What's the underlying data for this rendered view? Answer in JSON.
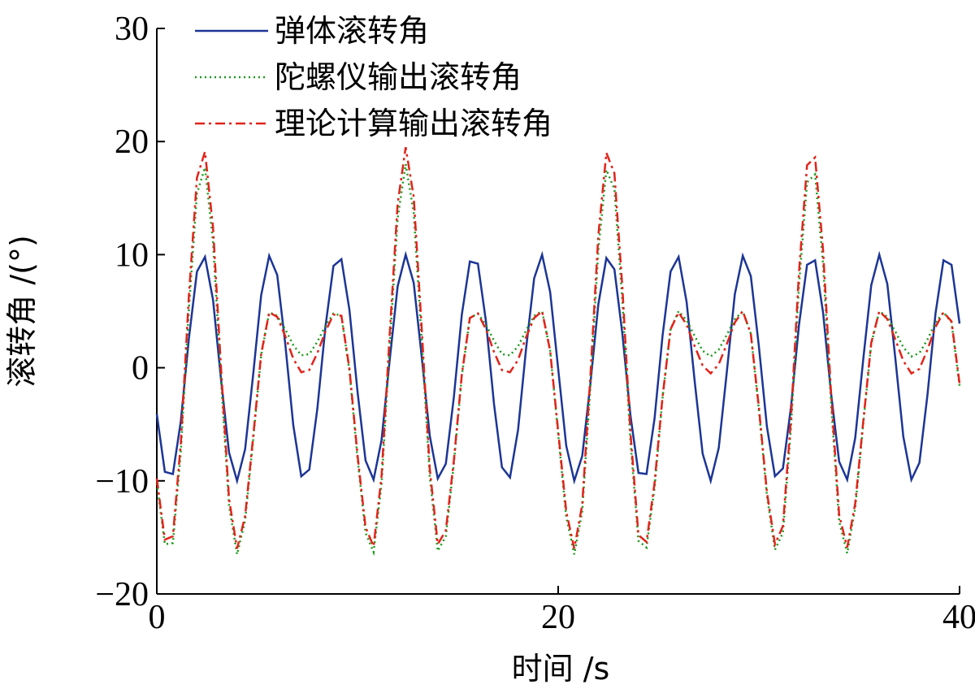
{
  "chart_data": {
    "type": "line",
    "xlabel": "时间 /s",
    "ylabel": "滚转角 /(°)",
    "xlim": [
      0,
      40
    ],
    "ylim": [
      -20,
      30
    ],
    "xticks": [
      0,
      20,
      40
    ],
    "yticks": [
      {
        "value": -20,
        "label": "−20"
      },
      {
        "value": -10,
        "label": "−10"
      },
      0,
      10,
      20,
      30
    ],
    "x": [
      0,
      0.4,
      0.8,
      1.2,
      1.6,
      2,
      2.4,
      2.8,
      3.2,
      3.6,
      4,
      4.4,
      4.8,
      5.2,
      5.6,
      6,
      6.4,
      6.8,
      7.2,
      7.6,
      8,
      8.4,
      8.8,
      9.2,
      9.6,
      10,
      10.4,
      10.8,
      11.2,
      11.6,
      12,
      12.4,
      12.8,
      13.2,
      13.6,
      14,
      14.4,
      14.8,
      15.2,
      15.6,
      16,
      16.4,
      16.8,
      17.2,
      17.6,
      18,
      18.4,
      18.8,
      19.2,
      19.6,
      20,
      20.4,
      20.8,
      21.2,
      21.6,
      22,
      22.4,
      22.8,
      23.2,
      23.6,
      24,
      24.4,
      24.8,
      25.2,
      25.6,
      26,
      26.4,
      26.8,
      27.2,
      27.6,
      28,
      28.4,
      28.8,
      29.2,
      29.6,
      30,
      30.4,
      30.8,
      31.2,
      31.6,
      32,
      32.4,
      32.8,
      33.2,
      33.6,
      34,
      34.4,
      34.8,
      35.2,
      35.6,
      36,
      36.4,
      36.8,
      37.2,
      37.6,
      38,
      38.4,
      38.8,
      39.2,
      39.6,
      40
    ],
    "series": [
      {
        "name": "弹体滚转角",
        "color": "#1c3596",
        "dash": "solid",
        "values": [
          -4.1,
          -9.2,
          -9.4,
          -4.7,
          2.6,
          8.5,
          9.8,
          6.0,
          -1.0,
          -7.5,
          -10.0,
          -7.2,
          -0.6,
          6.4,
          9.9,
          8.2,
          2.1,
          -5.1,
          -9.6,
          -9.0,
          -3.6,
          3.6,
          9.0,
          9.6,
          5.1,
          -2.1,
          -8.2,
          -9.9,
          -6.4,
          0.6,
          7.2,
          10.0,
          7.5,
          1.0,
          -6.0,
          -9.8,
          -8.5,
          -2.6,
          4.7,
          9.4,
          9.2,
          4.1,
          -3.2,
          -8.8,
          -9.7,
          -5.5,
          1.7,
          7.9,
          10.0,
          6.7,
          -0.1,
          -6.9,
          -10.0,
          -7.8,
          -1.5,
          5.6,
          9.7,
          8.7,
          3.0,
          -4.2,
          -9.3,
          -9.4,
          -4.5,
          2.8,
          8.5,
          9.8,
          5.8,
          -1.2,
          -7.6,
          -10.0,
          -7.1,
          -0.4,
          6.5,
          9.9,
          8.1,
          1.9,
          -5.2,
          -9.6,
          -8.9,
          -3.5,
          3.8,
          9.1,
          9.5,
          4.9,
          -2.3,
          -8.3,
          -9.9,
          -6.2,
          0.7,
          7.3,
          10.0,
          7.4,
          0.8,
          -6.1,
          -9.9,
          -8.4,
          -2.4,
          4.8,
          9.5,
          9.1,
          3.9
        ]
      },
      {
        "name": "陀螺仪输出滚转角",
        "color": "#1a9a1a",
        "dash": "dotted",
        "values": [
          -10.2,
          -15.6,
          -15.5,
          -7.4,
          5.2,
          15.4,
          17.7,
          11.1,
          -1.0,
          -12.2,
          -16.5,
          -13.5,
          -6.4,
          1.1,
          4.9,
          4.6,
          3.4,
          2.0,
          1.1,
          1.2,
          2.3,
          3.7,
          4.8,
          4.6,
          -0.3,
          -8.0,
          -14.6,
          -16.3,
          -10.3,
          1.8,
          13.2,
          18.0,
          13.7,
          2.5,
          -9.6,
          -16.2,
          -14.9,
          -8.5,
          -0.7,
          4.4,
          4.8,
          3.8,
          2.4,
          1.2,
          1.1,
          1.9,
          3.3,
          4.6,
          5.0,
          1.5,
          -5.9,
          -13.2,
          -16.5,
          -12.7,
          -1.8,
          10.4,
          17.5,
          15.8,
          5.9,
          -6.5,
          -15.3,
          -15.9,
          -10.6,
          -2.7,
          3.4,
          5.0,
          4.2,
          2.8,
          1.5,
          1.0,
          1.6,
          2.9,
          4.3,
          5.0,
          3.0,
          -3.7,
          -11.3,
          -16.1,
          -14.6,
          -5.3,
          7.3,
          16.4,
          17.1,
          9.2,
          -3.2,
          -13.6,
          -16.4,
          -12.4,
          -5.0,
          2.1,
          5.0,
          4.5,
          3.2,
          1.8,
          1.0,
          1.3,
          2.5,
          4.0,
          4.9,
          4.0,
          -1.6
        ]
      },
      {
        "name": "理论计算输出滚转角",
        "color": "#e2231a",
        "dash": "dashdot",
        "values": [
          -9.8,
          -15.2,
          -14.9,
          -6.6,
          6.4,
          16.8,
          19.1,
          12.4,
          0.0,
          -11.6,
          -16.0,
          -13.1,
          -6.1,
          1.2,
          4.9,
          4.5,
          2.8,
          0.8,
          -0.4,
          -0.2,
          1.3,
          3.2,
          4.7,
          4.6,
          -0.1,
          -7.7,
          -14.1,
          -15.8,
          -9.6,
          2.8,
          14.5,
          19.5,
          15.1,
          3.5,
          -8.9,
          -15.6,
          -14.4,
          -8.2,
          -0.6,
          4.4,
          4.8,
          3.4,
          1.4,
          -0.2,
          -0.4,
          0.7,
          2.7,
          4.4,
          5.0,
          1.5,
          -5.6,
          -12.7,
          -16.0,
          -12.1,
          -0.9,
          11.7,
          19.0,
          17.2,
          7.1,
          -5.7,
          -14.8,
          -15.4,
          -10.2,
          -2.6,
          3.4,
          4.9,
          3.8,
          1.9,
          0.2,
          -0.5,
          0.3,
          2.1,
          4.0,
          5.0,
          3.0,
          -3.5,
          -11.0,
          -15.6,
          -14.0,
          -4.5,
          8.5,
          17.9,
          18.6,
          10.4,
          -2.3,
          -13.0,
          -15.9,
          -12.0,
          -4.8,
          2.2,
          5.0,
          4.3,
          2.5,
          0.6,
          -0.5,
          -0.1,
          1.6,
          3.6,
          4.9,
          4.1,
          -1.4
        ]
      }
    ]
  }
}
